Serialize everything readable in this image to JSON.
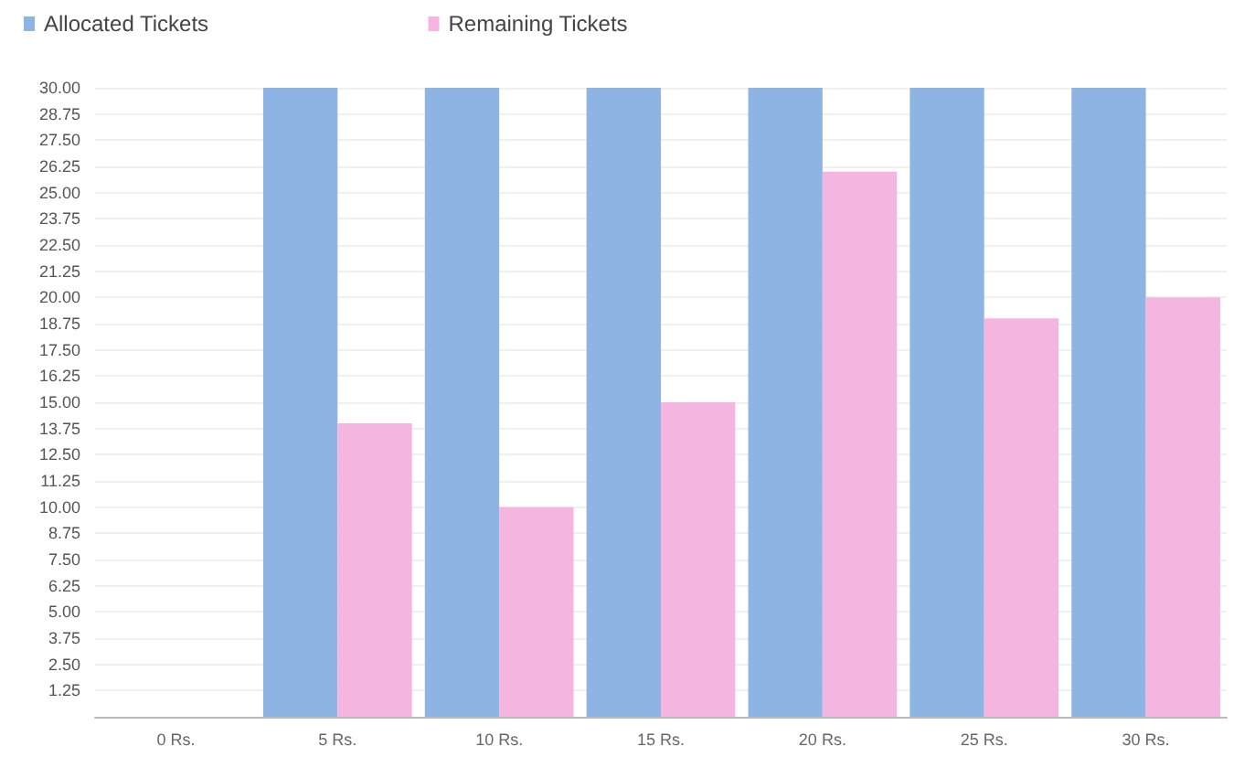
{
  "chart_data": {
    "type": "bar",
    "categories": [
      "0 Rs.",
      "5 Rs.",
      "10 Rs.",
      "15 Rs.",
      "20 Rs.",
      "25 Rs.",
      "30 Rs."
    ],
    "series": [
      {
        "name": "Allocated Tickets",
        "color": "#8db4e2",
        "values": [
          0,
          30,
          30,
          30,
          30,
          30,
          30
        ]
      },
      {
        "name": "Remaining Tickets",
        "color": "#f4b6e0",
        "values": [
          0,
          14,
          10,
          15,
          26,
          19,
          20
        ]
      }
    ],
    "ylim": [
      0,
      30
    ],
    "yticks": [
      {
        "value": 0,
        "label": null
      },
      {
        "value": 1.25,
        "label": "1.25"
      },
      {
        "value": 2.5,
        "label": "2.50"
      },
      {
        "value": 3.75,
        "label": "3.75"
      },
      {
        "value": 5,
        "label": "5.00"
      },
      {
        "value": 6.25,
        "label": "6.25"
      },
      {
        "value": 7.5,
        "label": "7.50"
      },
      {
        "value": 8.75,
        "label": "8.75"
      },
      {
        "value": 10,
        "label": "10.00"
      },
      {
        "value": 11.25,
        "label": "11.25"
      },
      {
        "value": 12.5,
        "label": "12.50"
      },
      {
        "value": 13.75,
        "label": "13.75"
      },
      {
        "value": 15,
        "label": "15.00"
      },
      {
        "value": 16.25,
        "label": "16.25"
      },
      {
        "value": 17.5,
        "label": "17.50"
      },
      {
        "value": 18.75,
        "label": "18.75"
      },
      {
        "value": 20,
        "label": "20.00"
      },
      {
        "value": 21.25,
        "label": "21.25"
      },
      {
        "value": 22.5,
        "label": "22.50"
      },
      {
        "value": 23.75,
        "label": "23.75"
      },
      {
        "value": 25,
        "label": "25.00"
      },
      {
        "value": 26.25,
        "label": "26.25"
      },
      {
        "value": 27.5,
        "label": "27.50"
      },
      {
        "value": 28.75,
        "label": "28.75"
      },
      {
        "value": 30,
        "label": "30.00"
      }
    ],
    "grid": "y",
    "legend": "top left"
  }
}
